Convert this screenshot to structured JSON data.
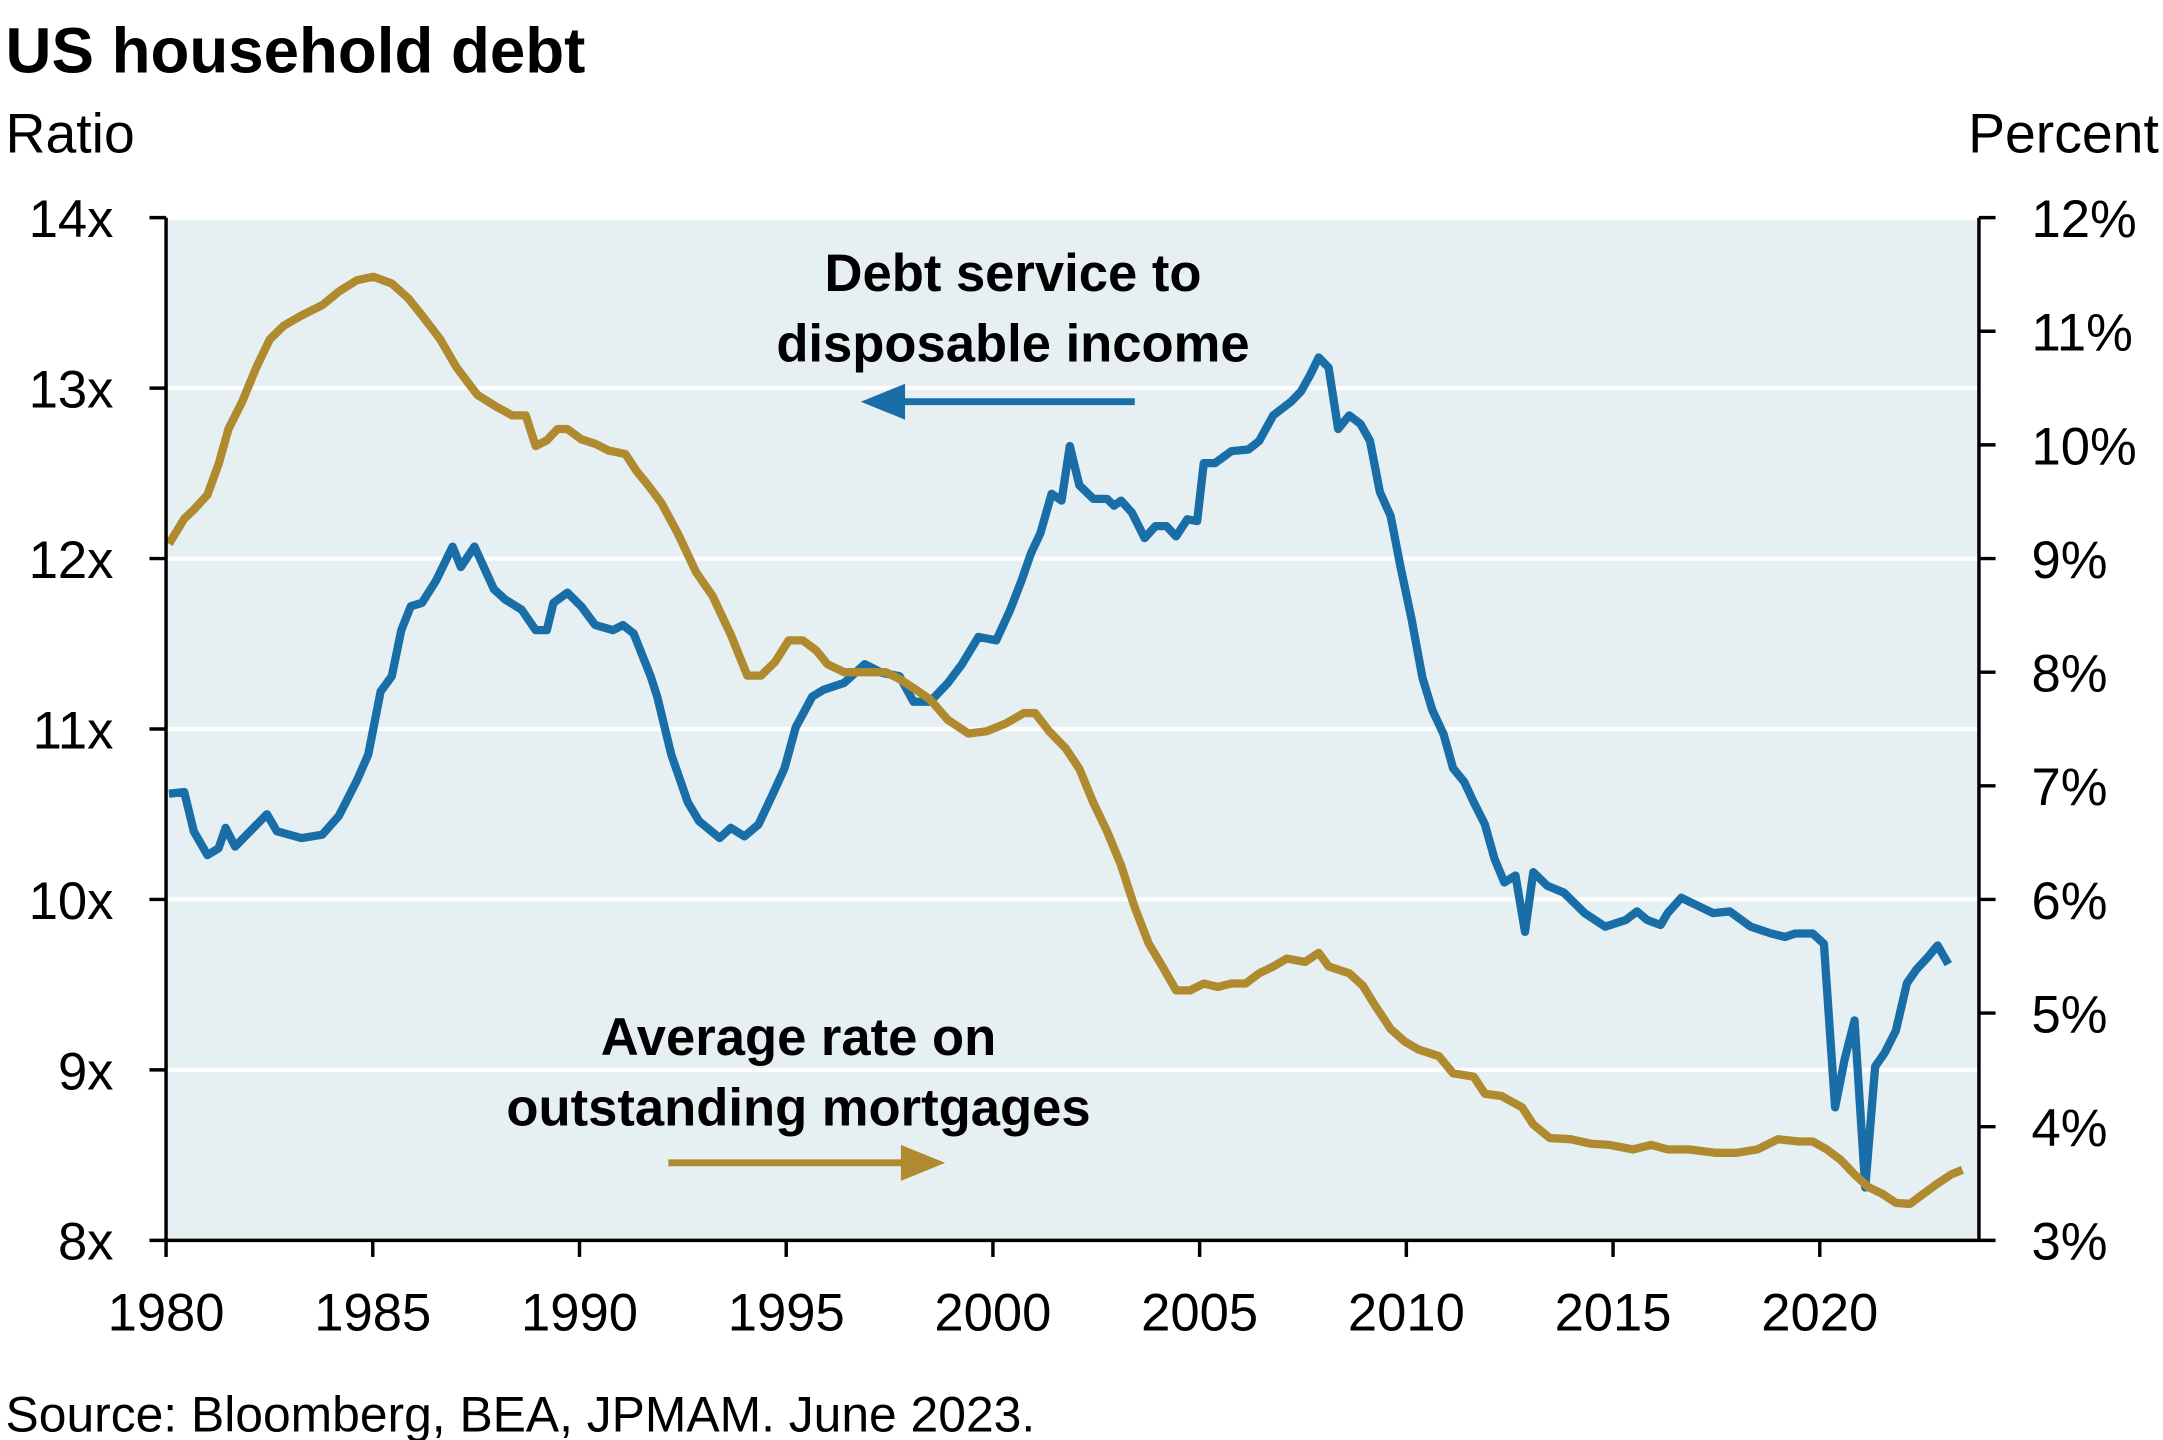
{
  "chart_data": {
    "type": "line",
    "title": "US household debt",
    "y_label": "Ratio",
    "y2_label": "Percent",
    "source": "Source: Bloomberg, BEA, JPMAM. June 2023.",
    "xlim": [
      1980,
      2023.85
    ],
    "xticks": [
      1980,
      1985,
      1990,
      1995,
      2000,
      2005,
      2010,
      2015,
      2020
    ],
    "ylim": [
      8,
      14
    ],
    "yticks": [
      {
        "value": 8,
        "label": "8x"
      },
      {
        "value": 9,
        "label": "9x"
      },
      {
        "value": 10,
        "label": "10x"
      },
      {
        "value": 11,
        "label": "11x"
      },
      {
        "value": 12,
        "label": "12x"
      },
      {
        "value": 13,
        "label": "13x"
      },
      {
        "value": 14,
        "label": "14x"
      }
    ],
    "y2lim": [
      3,
      12
    ],
    "y2ticks": [
      {
        "value": 3,
        "label": "3%"
      },
      {
        "value": 4,
        "label": "4%"
      },
      {
        "value": 5,
        "label": "5%"
      },
      {
        "value": 6,
        "label": "6%"
      },
      {
        "value": 7,
        "label": "7%"
      },
      {
        "value": 8,
        "label": "8%"
      },
      {
        "value": 9,
        "label": "9%"
      },
      {
        "value": 10,
        "label": "10%"
      },
      {
        "value": 11,
        "label": "11%"
      },
      {
        "value": 12,
        "label": "12%"
      }
    ],
    "grid": true,
    "background": "#e6f0f3",
    "series": [
      {
        "name": [
          "Debt service to",
          "disposable income"
        ],
        "color": "#1a6ea8",
        "axis": "y",
        "x": [
          1980.07,
          1980.44,
          1980.67,
          1981.0,
          1981.27,
          1981.44,
          1981.67,
          1982.44,
          1982.68,
          1983.28,
          1983.78,
          1984.18,
          1984.62,
          1984.89,
          1985.19,
          1985.46,
          1985.69,
          1985.92,
          1986.19,
          1986.53,
          1986.93,
          1987.13,
          1987.46,
          1987.93,
          1988.2,
          1988.6,
          1988.94,
          1989.21,
          1989.37,
          1989.71,
          1990.04,
          1990.38,
          1990.81,
          1991.05,
          1991.31,
          1991.72,
          1991.88,
          1992.22,
          1992.62,
          1992.89,
          1993.39,
          1993.66,
          1993.99,
          1994.33,
          1994.66,
          1994.96,
          1995.23,
          1995.63,
          1995.9,
          1996.4,
          1996.9,
          1997.31,
          1997.74,
          1998.08,
          1998.48,
          1998.91,
          1999.25,
          1999.65,
          2000.08,
          2000.42,
          2000.69,
          2000.92,
          2001.15,
          2001.42,
          2001.66,
          2001.86,
          2002.09,
          2002.43,
          2002.76,
          2002.93,
          2003.1,
          2003.36,
          2003.67,
          2003.93,
          2004.2,
          2004.43,
          2004.7,
          2004.94,
          2005.1,
          2005.37,
          2005.77,
          2006.18,
          2006.44,
          2006.78,
          2007.21,
          2007.45,
          2007.68,
          2007.88,
          2008.12,
          2008.35,
          2008.62,
          2008.89,
          2009.12,
          2009.36,
          2009.62,
          2009.86,
          2010.13,
          2010.39,
          2010.63,
          2010.9,
          2011.13,
          2011.4,
          2011.63,
          2011.9,
          2012.13,
          2012.37,
          2012.64,
          2012.87,
          2013.07,
          2013.41,
          2013.81,
          2014.31,
          2014.81,
          2015.31,
          2015.58,
          2015.82,
          2016.15,
          2016.32,
          2016.65,
          2016.99,
          2017.42,
          2017.82,
          2018.33,
          2018.83,
          2019.16,
          2019.4,
          2019.83,
          2020.1,
          2020.37,
          2020.6,
          2020.84,
          2021.1,
          2021.34,
          2021.57,
          2021.84,
          2022.11,
          2022.34,
          2022.61,
          2022.85,
          2023.11
        ],
        "values": [
          10.62,
          10.63,
          10.4,
          10.26,
          10.3,
          10.42,
          10.31,
          10.5,
          10.4,
          10.36,
          10.38,
          10.49,
          10.7,
          10.85,
          11.22,
          11.31,
          11.58,
          11.72,
          11.74,
          11.87,
          12.07,
          11.95,
          12.07,
          11.82,
          11.76,
          11.7,
          11.58,
          11.58,
          11.74,
          11.8,
          11.72,
          11.61,
          11.58,
          11.61,
          11.56,
          11.31,
          11.19,
          10.85,
          10.57,
          10.46,
          10.36,
          10.42,
          10.37,
          10.44,
          10.61,
          10.77,
          11.01,
          11.19,
          11.23,
          11.27,
          11.38,
          11.33,
          11.31,
          11.16,
          11.16,
          11.27,
          11.38,
          11.54,
          11.52,
          11.7,
          11.87,
          12.03,
          12.15,
          12.38,
          12.34,
          12.66,
          12.43,
          12.35,
          12.35,
          12.31,
          12.34,
          12.27,
          12.12,
          12.19,
          12.19,
          12.13,
          12.23,
          12.22,
          12.56,
          12.56,
          12.63,
          12.64,
          12.69,
          12.84,
          12.92,
          12.98,
          13.08,
          13.18,
          13.12,
          12.76,
          12.84,
          12.79,
          12.69,
          12.39,
          12.25,
          11.95,
          11.64,
          11.3,
          11.11,
          10.97,
          10.77,
          10.69,
          10.57,
          10.44,
          10.24,
          10.1,
          10.14,
          9.81,
          10.16,
          10.08,
          10.04,
          9.92,
          9.84,
          9.88,
          9.93,
          9.88,
          9.85,
          9.92,
          10.01,
          9.97,
          9.92,
          9.93,
          9.84,
          9.8,
          9.78,
          9.8,
          9.8,
          9.74,
          8.78,
          9.06,
          9.29,
          8.31,
          9.02,
          9.1,
          9.23,
          9.51,
          9.59,
          9.66,
          9.73,
          9.62
        ]
      },
      {
        "name": [
          "Average rate on",
          "outstanding mortgages"
        ],
        "color": "#b08a2e",
        "axis": "y2",
        "x": [
          1980.07,
          1980.44,
          1980.67,
          1981.0,
          1981.27,
          1981.51,
          1981.84,
          1982.18,
          1982.51,
          1982.85,
          1983.28,
          1983.78,
          1984.18,
          1984.62,
          1985.02,
          1985.46,
          1985.86,
          1986.19,
          1986.63,
          1987.03,
          1987.53,
          1987.97,
          1988.37,
          1988.7,
          1988.94,
          1989.21,
          1989.47,
          1989.71,
          1990.04,
          1990.38,
          1990.71,
          1991.11,
          1991.38,
          1991.65,
          1991.98,
          1992.38,
          1992.82,
          1993.22,
          1993.66,
          1994.06,
          1994.39,
          1994.73,
          1995.06,
          1995.4,
          1995.73,
          1996.0,
          1996.4,
          1996.9,
          1997.41,
          1997.74,
          1998.08,
          1998.48,
          1998.91,
          1999.41,
          1999.85,
          2000.32,
          2000.75,
          2001.02,
          2001.36,
          2001.76,
          2002.09,
          2002.43,
          2002.76,
          2003.1,
          2003.43,
          2003.77,
          2004.1,
          2004.43,
          2004.77,
          2005.1,
          2005.44,
          2005.77,
          2006.11,
          2006.44,
          2006.78,
          2007.11,
          2007.55,
          2007.88,
          2008.12,
          2008.62,
          2008.95,
          2009.22,
          2009.62,
          2009.96,
          2010.29,
          2010.79,
          2011.13,
          2011.63,
          2011.9,
          2012.3,
          2012.8,
          2013.07,
          2013.47,
          2013.97,
          2014.48,
          2014.91,
          2015.48,
          2015.92,
          2016.32,
          2016.82,
          2017.49,
          2017.99,
          2018.49,
          2018.99,
          2019.5,
          2019.83,
          2020.17,
          2020.5,
          2020.84,
          2021.17,
          2021.51,
          2021.84,
          2022.18,
          2022.51,
          2022.85,
          2023.18,
          2023.45
        ],
        "values": [
          9.13,
          9.35,
          9.43,
          9.56,
          9.83,
          10.14,
          10.38,
          10.68,
          10.93,
          11.05,
          11.14,
          11.23,
          11.35,
          11.45,
          11.48,
          11.42,
          11.29,
          11.14,
          10.93,
          10.68,
          10.44,
          10.34,
          10.26,
          10.26,
          9.99,
          10.04,
          10.14,
          10.14,
          10.05,
          10.01,
          9.95,
          9.92,
          9.77,
          9.65,
          9.49,
          9.22,
          8.88,
          8.67,
          8.33,
          7.97,
          7.97,
          8.09,
          8.28,
          8.28,
          8.19,
          8.07,
          8.0,
          8.0,
          8.0,
          7.94,
          7.86,
          7.76,
          7.58,
          7.46,
          7.48,
          7.55,
          7.64,
          7.64,
          7.48,
          7.33,
          7.15,
          6.85,
          6.6,
          6.3,
          5.93,
          5.61,
          5.41,
          5.2,
          5.2,
          5.26,
          5.23,
          5.26,
          5.26,
          5.35,
          5.41,
          5.48,
          5.45,
          5.53,
          5.41,
          5.35,
          5.24,
          5.08,
          4.86,
          4.75,
          4.68,
          4.62,
          4.47,
          4.44,
          4.29,
          4.27,
          4.17,
          4.02,
          3.9,
          3.89,
          3.85,
          3.84,
          3.8,
          3.84,
          3.8,
          3.8,
          3.77,
          3.77,
          3.8,
          3.89,
          3.87,
          3.87,
          3.8,
          3.71,
          3.58,
          3.47,
          3.41,
          3.33,
          3.32,
          3.41,
          3.5,
          3.58,
          3.62
        ]
      }
    ]
  }
}
